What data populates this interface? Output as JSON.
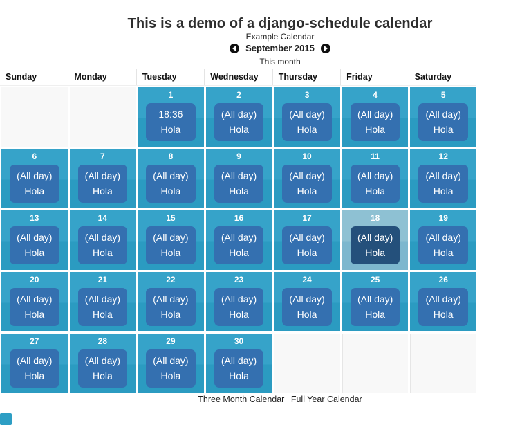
{
  "page": {
    "title": "This is a demo of a django-schedule calendar",
    "calendar_name": "Example Calendar",
    "month_label": "September 2015",
    "this_month_label": "This month",
    "footer_links": [
      "Three Month Calendar",
      "Full Year Calendar"
    ]
  },
  "colors": {
    "cell_top": "#36A3C9",
    "cell_bottom": "#2B9BC1",
    "event_box": "#3470B0",
    "today_cell_top": "#8EC1D3",
    "today_cell_bottom": "#7DB7CE",
    "today_event_box": "#24507B",
    "empty_cell": "#F8F8F8",
    "nav_circle": "#101010"
  },
  "calendar": {
    "weekday_headers": [
      "Sunday",
      "Monday",
      "Tuesday",
      "Wednesday",
      "Thursday",
      "Friday",
      "Saturday"
    ],
    "weeks": [
      {
        "cells": [
          {
            "empty": true
          },
          {
            "empty": true
          },
          {
            "day": "1",
            "time": "18:36",
            "title": "Hola"
          },
          {
            "day": "2",
            "time": "(All day)",
            "title": "Hola"
          },
          {
            "day": "3",
            "time": "(All day)",
            "title": "Hola"
          },
          {
            "day": "4",
            "time": "(All day)",
            "title": "Hola"
          },
          {
            "day": "5",
            "time": "(All day)",
            "title": "Hola"
          }
        ]
      },
      {
        "cells": [
          {
            "day": "6",
            "time": "(All day)",
            "title": "Hola"
          },
          {
            "day": "7",
            "time": "(All day)",
            "title": "Hola"
          },
          {
            "day": "8",
            "time": "(All day)",
            "title": "Hola"
          },
          {
            "day": "9",
            "time": "(All day)",
            "title": "Hola"
          },
          {
            "day": "10",
            "time": "(All day)",
            "title": "Hola"
          },
          {
            "day": "11",
            "time": "(All day)",
            "title": "Hola"
          },
          {
            "day": "12",
            "time": "(All day)",
            "title": "Hola"
          }
        ]
      },
      {
        "cells": [
          {
            "day": "13",
            "time": "(All day)",
            "title": "Hola"
          },
          {
            "day": "14",
            "time": "(All day)",
            "title": "Hola"
          },
          {
            "day": "15",
            "time": "(All day)",
            "title": "Hola"
          },
          {
            "day": "16",
            "time": "(All day)",
            "title": "Hola"
          },
          {
            "day": "17",
            "time": "(All day)",
            "title": "Hola"
          },
          {
            "day": "18",
            "time": "(All day)",
            "title": "Hola",
            "today": true
          },
          {
            "day": "19",
            "time": "(All day)",
            "title": "Hola"
          }
        ]
      },
      {
        "cells": [
          {
            "day": "20",
            "time": "(All day)",
            "title": "Hola"
          },
          {
            "day": "21",
            "time": "(All day)",
            "title": "Hola"
          },
          {
            "day": "22",
            "time": "(All day)",
            "title": "Hola"
          },
          {
            "day": "23",
            "time": "(All day)",
            "title": "Hola"
          },
          {
            "day": "24",
            "time": "(All day)",
            "title": "Hola"
          },
          {
            "day": "25",
            "time": "(All day)",
            "title": "Hola"
          },
          {
            "day": "26",
            "time": "(All day)",
            "title": "Hola"
          }
        ]
      },
      {
        "cells": [
          {
            "day": "27",
            "time": "(All day)",
            "title": "Hola"
          },
          {
            "day": "28",
            "time": "(All day)",
            "title": "Hola"
          },
          {
            "day": "29",
            "time": "(All day)",
            "title": "Hola"
          },
          {
            "day": "30",
            "time": "(All day)",
            "title": "Hola"
          },
          {
            "empty": true,
            "divided": true
          },
          {
            "empty": true,
            "divided": true
          },
          {
            "empty": true,
            "divided": true
          }
        ]
      }
    ]
  }
}
